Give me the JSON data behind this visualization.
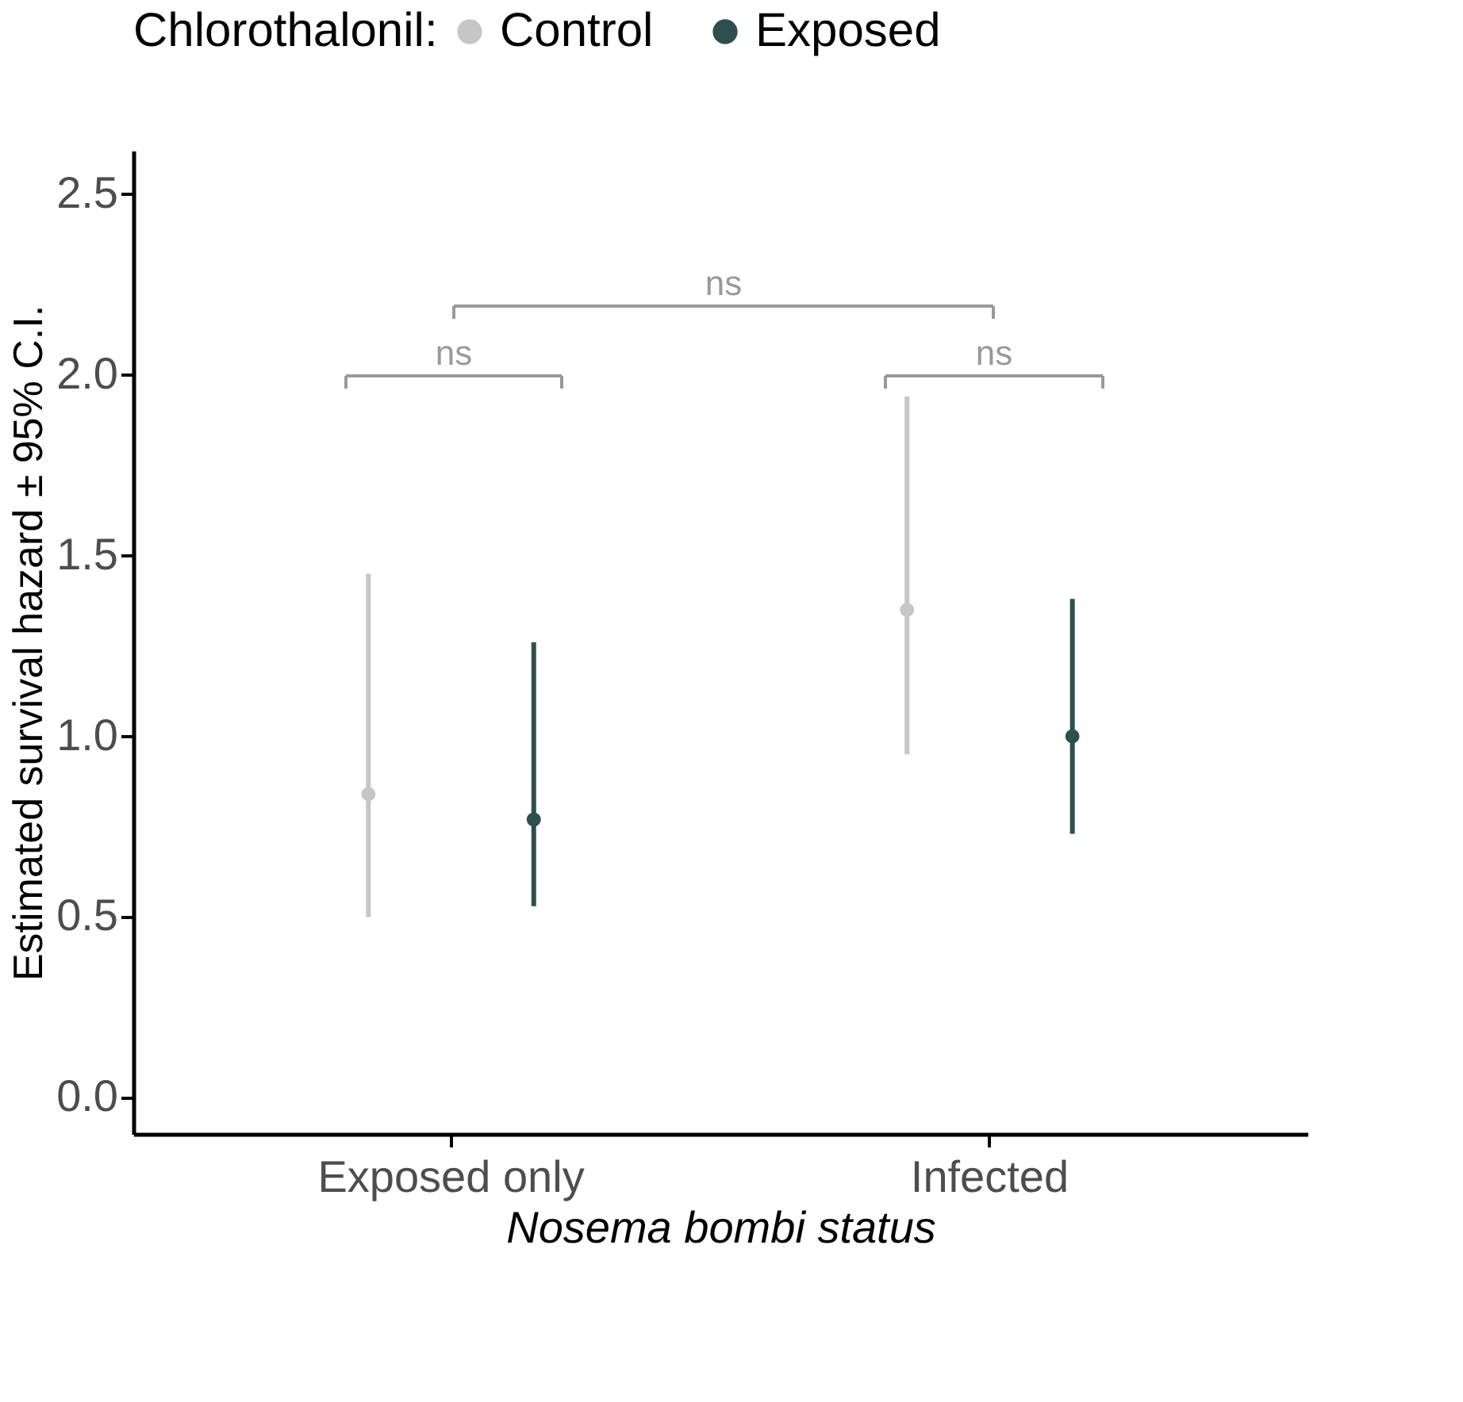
{
  "chart_data": {
    "type": "scatter",
    "xlabel": "Nosema bombi status",
    "ylabel": "Estimated survival hazard ± 95% C.I.",
    "legend_title": "Chlorothalonil:",
    "categories": [
      "Exposed only",
      "Infected"
    ],
    "series": [
      {
        "name": "Control",
        "color": "#c6c6c6",
        "values": [
          0.84,
          1.35
        ],
        "errors": [
          [
            0.5,
            1.45
          ],
          [
            0.95,
            1.94
          ]
        ]
      },
      {
        "name": "Exposed",
        "color": "#2f4f4f",
        "values": [
          0.77,
          1.0
        ],
        "errors": [
          [
            0.53,
            1.26
          ],
          [
            0.73,
            1.38
          ]
        ]
      }
    ],
    "ylim": [
      -0.1,
      2.62
    ],
    "yticks": [
      {
        "value": 0,
        "label": "0.0"
      },
      0.5,
      {
        "value": 1,
        "label": "1.0"
      },
      1.5,
      {
        "value": 2,
        "label": "2.0"
      },
      2.5
    ],
    "annotations": [
      "ns",
      "ns",
      "ns"
    ],
    "grid": false,
    "legend": "top",
    "marker": "circle"
  }
}
